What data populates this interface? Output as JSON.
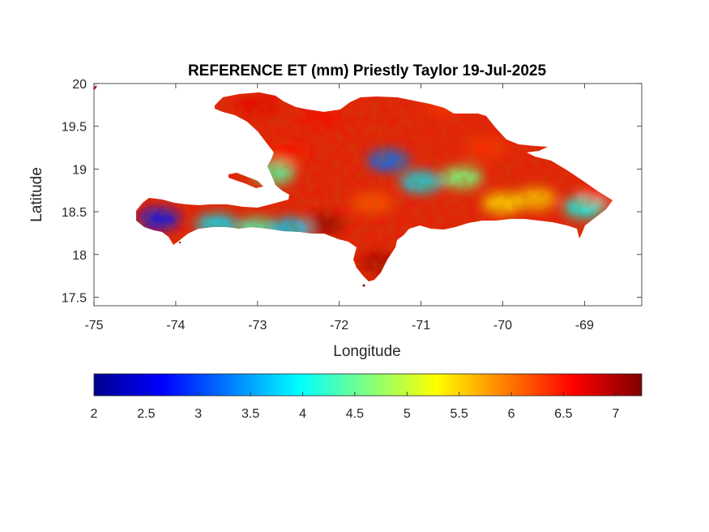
{
  "chart_data": {
    "type": "heatmap",
    "title": "REFERENCE ET (mm) Priestly Taylor 19-Jul-2025",
    "xlabel": "Longitude",
    "ylabel": "Latitude",
    "xlim": [
      -75,
      -68.3
    ],
    "ylim": [
      17.4,
      20
    ],
    "xticks": [
      -75,
      -74,
      -73,
      -72,
      -71,
      -70,
      -69
    ],
    "xtick_labels": [
      "-75",
      "-74",
      "-73",
      "-72",
      "-71",
      "-70",
      "-69"
    ],
    "yticks": [
      17.5,
      18,
      18.5,
      19,
      19.5,
      20
    ],
    "ytick_labels": [
      "17.5",
      "18",
      "18.5",
      "19",
      "19.5",
      "20"
    ],
    "colormap": "jet",
    "colorbar": {
      "orientation": "horizontal",
      "location": "bottom",
      "clim": [
        2,
        7.25
      ],
      "ticks": [
        2,
        2.5,
        3,
        3.5,
        4,
        4.5,
        5,
        5.5,
        6,
        6.5,
        7
      ],
      "tick_labels": [
        "2",
        "2.5",
        "3",
        "3.5",
        "4",
        "4.5",
        "5",
        "5.5",
        "6",
        "6.5",
        "7"
      ]
    },
    "region": "Hispaniola (Haiti and Dominican Republic)",
    "value_ranges": {
      "min_approx": 2.5,
      "max_approx": 7.2,
      "dominant_approx": 6.6
    },
    "regions": [
      {
        "lon": -72.2,
        "lat": 18.35,
        "value": 7.1
      },
      {
        "lon": -71.5,
        "lat": 17.9,
        "value": 7.0
      },
      {
        "lon": -73.0,
        "lat": 19.75,
        "value": 6.7
      },
      {
        "lon": -72.2,
        "lat": 19.6,
        "value": 6.6
      },
      {
        "lon": -70.7,
        "lat": 19.75,
        "value": 6.4
      },
      {
        "lon": -71.4,
        "lat": 19.1,
        "value": 3.2
      },
      {
        "lon": -71.0,
        "lat": 18.85,
        "value": 3.8
      },
      {
        "lon": -70.5,
        "lat": 18.9,
        "value": 4.6
      },
      {
        "lon": -69.6,
        "lat": 18.65,
        "value": 5.6
      },
      {
        "lon": -69.0,
        "lat": 18.55,
        "value": 4.0
      },
      {
        "lon": -68.8,
        "lat": 18.75,
        "value": 6.6
      },
      {
        "lon": -74.2,
        "lat": 18.42,
        "value": 2.7
      },
      {
        "lon": -73.5,
        "lat": 18.35,
        "value": 3.8
      },
      {
        "lon": -73.0,
        "lat": 18.3,
        "value": 4.3
      },
      {
        "lon": -72.6,
        "lat": 18.3,
        "value": 3.7
      },
      {
        "lon": -72.6,
        "lat": 19.2,
        "value": 6.5
      },
      {
        "lon": -72.8,
        "lat": 18.95,
        "value": 4.4
      },
      {
        "lon": -70.2,
        "lat": 19.25,
        "value": 6.4
      },
      {
        "lon": -70.0,
        "lat": 18.6,
        "value": 5.5
      },
      {
        "lon": -71.6,
        "lat": 18.6,
        "value": 6.2
      }
    ]
  }
}
